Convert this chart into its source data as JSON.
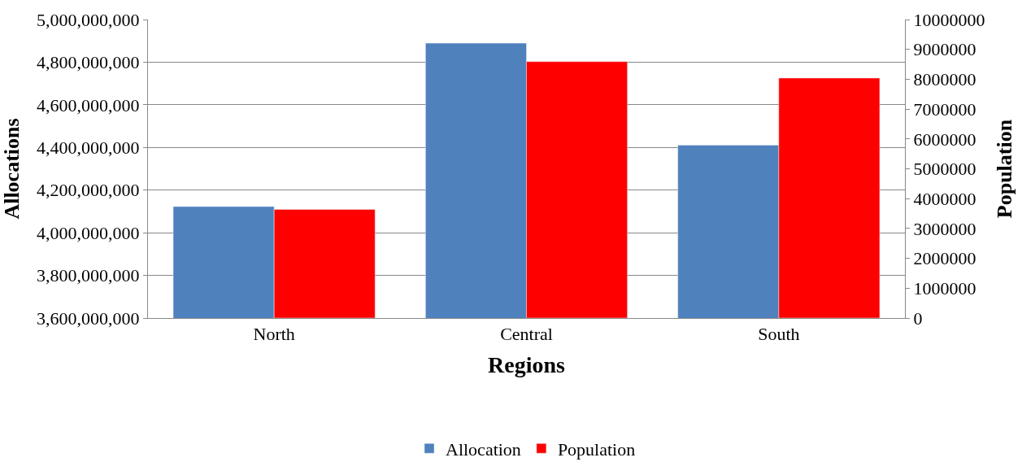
{
  "chart_data": {
    "type": "bar",
    "xlabel": "Regions",
    "ylabel": "Allocations",
    "y2label": "Population",
    "categories": [
      "North",
      "Central",
      "South"
    ],
    "series": [
      {
        "name": "Allocation",
        "color": "#4f81bd",
        "values": [
          4123000000,
          4889000000,
          4411000000
        ]
      },
      {
        "name": "Population",
        "color": "#ff0000",
        "values": [
          3640000,
          8590000,
          8040000
        ],
        "axis": "y2"
      }
    ],
    "ylim": [
      3600000000,
      5000000000
    ],
    "yticks": [
      {
        "value": 3600000000,
        "label": "3,600,000,000"
      },
      {
        "value": 3800000000,
        "label": "3,800,000,000"
      },
      {
        "value": 4000000000,
        "label": "4,000,000,000"
      },
      {
        "value": 4200000000,
        "label": "4,200,000,000"
      },
      {
        "value": 4400000000,
        "label": "4,400,000,000"
      },
      {
        "value": 4600000000,
        "label": "4,600,000,000"
      },
      {
        "value": 4800000000,
        "label": "4,800,000,000"
      },
      {
        "value": 5000000000,
        "label": "5,000,000,000"
      }
    ],
    "y2lim": [
      0,
      10000000
    ],
    "y2ticks": [
      0,
      1000000,
      2000000,
      3000000,
      4000000,
      5000000,
      6000000,
      7000000,
      8000000,
      9000000,
      10000000
    ],
    "grid": "y",
    "legend": "bottom"
  }
}
